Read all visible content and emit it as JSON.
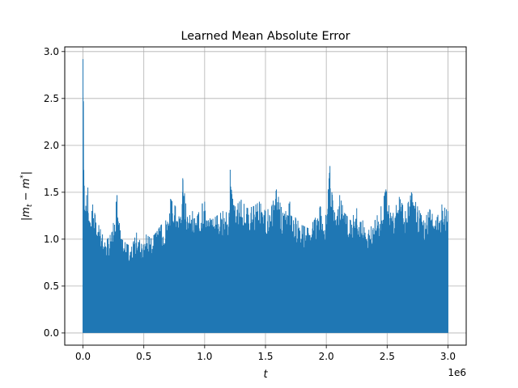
{
  "chart_data": {
    "type": "line",
    "title": "Learned Mean Absolute Error",
    "xlabel": "t",
    "ylabel": "|m_t - m^*|",
    "x_offset_label": "1e6",
    "x_tick_labels": [
      "0.0",
      "0.5",
      "1.0",
      "1.5",
      "2.0",
      "2.5",
      "3.0"
    ],
    "x_ticks": [
      0,
      500000,
      1000000,
      1500000,
      2000000,
      2500000,
      3000000
    ],
    "y_tick_labels": [
      "0.0",
      "0.5",
      "1.0",
      "1.5",
      "2.0",
      "2.5",
      "3.0"
    ],
    "y_ticks": [
      0,
      0.5,
      1.0,
      1.5,
      2.0,
      2.5,
      3.0
    ],
    "xlim": [
      -150000,
      3150000
    ],
    "ylim": [
      -0.13,
      3.05
    ],
    "grid": true,
    "color": "#1f77b4",
    "series": [
      {
        "x": [
          0,
          10000,
          20000,
          30000,
          40000,
          60000,
          80000,
          100000,
          130000,
          160000,
          200000,
          240000,
          280000,
          320000,
          360000,
          400000,
          440000,
          480000,
          520000,
          560000,
          600000,
          640000,
          680000,
          720000,
          760000,
          800000,
          820000,
          860000,
          900000,
          940000,
          980000,
          1000000,
          1050000,
          1100000,
          1150000,
          1200000,
          1210000,
          1250000,
          1300000,
          1350000,
          1400000,
          1450000,
          1500000,
          1550000,
          1590000,
          1650000,
          1700000,
          1750000,
          1800000,
          1850000,
          1900000,
          1950000,
          2000000,
          2030000,
          2080000,
          2110000,
          2150000,
          2200000,
          2250000,
          2300000,
          2350000,
          2400000,
          2450000,
          2490000,
          2550000,
          2600000,
          2650000,
          2700000,
          2750000,
          2800000,
          2850000,
          2900000,
          2950000,
          3000000
        ],
        "values": [
          2.92,
          1.57,
          1.3,
          1.47,
          1.55,
          1.17,
          1.37,
          1.26,
          1.15,
          1.05,
          1.0,
          1.08,
          1.47,
          1.0,
          0.95,
          0.92,
          1.07,
          0.95,
          1.05,
          1.01,
          1.07,
          1.15,
          1.2,
          1.43,
          1.35,
          1.2,
          1.65,
          1.22,
          1.3,
          1.25,
          1.38,
          1.4,
          1.2,
          1.25,
          1.3,
          1.28,
          1.74,
          1.35,
          1.42,
          1.33,
          1.35,
          1.4,
          1.3,
          1.35,
          1.53,
          1.25,
          1.4,
          1.22,
          1.15,
          1.12,
          1.2,
          1.35,
          1.25,
          1.78,
          1.15,
          1.47,
          1.28,
          1.2,
          1.33,
          1.2,
          1.1,
          1.2,
          1.35,
          1.53,
          1.28,
          1.45,
          1.3,
          1.5,
          1.35,
          1.2,
          1.32,
          1.2,
          1.37,
          1.3
        ],
        "min_values": [
          0,
          0,
          0,
          0,
          0,
          0,
          0,
          0,
          0,
          0,
          0,
          0,
          0,
          0,
          0,
          0,
          0,
          0,
          0,
          0,
          0,
          0,
          0,
          0,
          0,
          0,
          0,
          0,
          0,
          0,
          0,
          0,
          0,
          0,
          0,
          0,
          0,
          0,
          0,
          0,
          0,
          0,
          0,
          0,
          0,
          0,
          0,
          0,
          0,
          0,
          0,
          0,
          0,
          0,
          0,
          0,
          0,
          0,
          0,
          0,
          0,
          0,
          0,
          0,
          0,
          0,
          0,
          0,
          0,
          0,
          0,
          0,
          0,
          0
        ]
      }
    ]
  }
}
